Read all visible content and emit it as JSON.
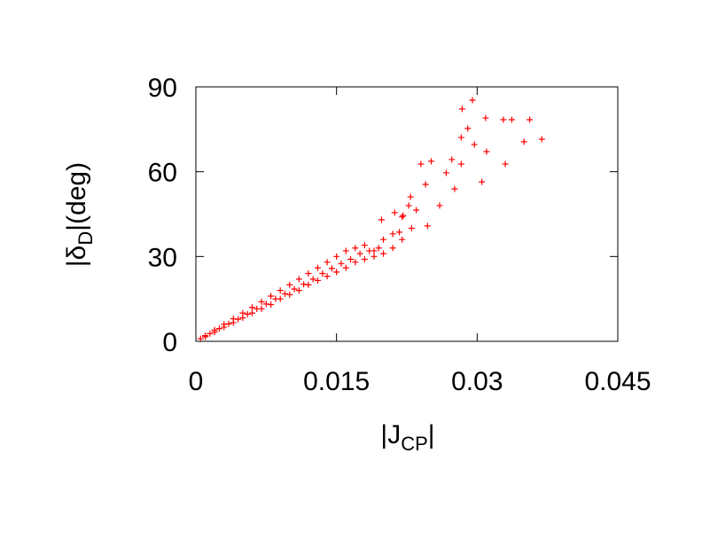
{
  "chart_data": {
    "type": "scatter",
    "xlabel": [
      "|J",
      "CP",
      "|"
    ],
    "ylabel": [
      "|δ",
      "D",
      "|(deg)"
    ],
    "xlim": [
      0,
      0.045
    ],
    "xticks": [
      0,
      0.015,
      0.03,
      0.045
    ],
    "ylim": [
      0,
      90
    ],
    "yticks": [
      0,
      30,
      60,
      90
    ],
    "color": "#ff0000",
    "x": [
      0.0005,
      0.001,
      0.001,
      0.0015,
      0.002,
      0.002,
      0.0025,
      0.003,
      0.003,
      0.0035,
      0.004,
      0.004,
      0.0045,
      0.005,
      0.005,
      0.0055,
      0.006,
      0.006,
      0.0065,
      0.007,
      0.007,
      0.0075,
      0.008,
      0.008,
      0.0085,
      0.009,
      0.009,
      0.0095,
      0.01,
      0.01,
      0.0105,
      0.011,
      0.011,
      0.0115,
      0.012,
      0.012,
      0.0125,
      0.013,
      0.013,
      0.0135,
      0.014,
      0.014,
      0.0145,
      0.015,
      0.015,
      0.0155,
      0.016,
      0.016,
      0.0165,
      0.017,
      0.017,
      0.0175,
      0.018,
      0.018,
      0.0185,
      0.019,
      0.019,
      0.0195,
      0.02,
      0.02,
      0.021,
      0.021,
      0.022,
      0.022,
      0.023,
      0.0295,
      0.0284,
      0.029,
      0.0309,
      0.0328,
      0.0337,
      0.0356,
      0.0369,
      0.035,
      0.0283,
      0.0297,
      0.031,
      0.033,
      0.0305,
      0.0283,
      0.0273,
      0.0251,
      0.0267,
      0.0276,
      0.026,
      0.0245,
      0.0229,
      0.0235,
      0.0221,
      0.0212,
      0.0217,
      0.0198,
      0.0247,
      0.0227,
      0.024
    ],
    "values": [
      0.9,
      1.6,
      2.0,
      2.7,
      3.3,
      4.0,
      4.5,
      5.0,
      6.0,
      6.2,
      6.6,
      8.0,
      7.8,
      8.3,
      10,
      9.6,
      10,
      12,
      11.5,
      11.5,
      14,
      13.2,
      13,
      16,
      15,
      15,
      18,
      16.8,
      16.5,
      20,
      18.5,
      18,
      22,
      20.2,
      20,
      24,
      22,
      21.5,
      26,
      24,
      23,
      28,
      25.8,
      24.5,
      30,
      27.5,
      26,
      32,
      29,
      28,
      33,
      31,
      29,
      34,
      32,
      30,
      32,
      33,
      31,
      36,
      33,
      38,
      36,
      44,
      40,
      85.3,
      82.2,
      75.3,
      79.0,
      78.4,
      78.4,
      78.4,
      71.5,
      70.6,
      72.1,
      69.6,
      67.1,
      62.7,
      56.4,
      62.7,
      64.3,
      63.7,
      59.6,
      53.9,
      48.0,
      55.5,
      51.1,
      46.4,
      44.5,
      45.5,
      38.6,
      43,
      40.8,
      48,
      62.7
    ]
  }
}
